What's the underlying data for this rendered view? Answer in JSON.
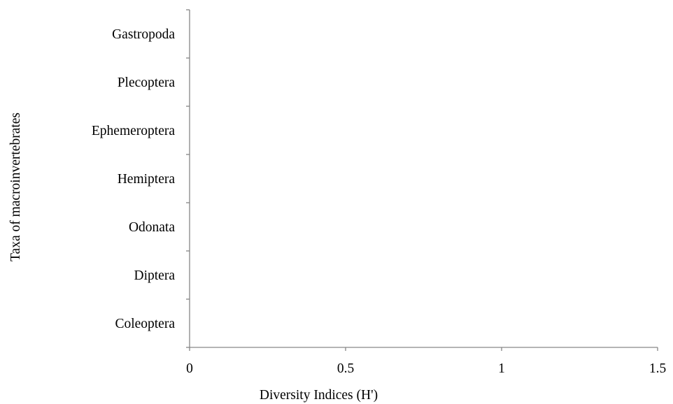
{
  "chart_data": {
    "type": "bar",
    "orientation": "horizontal",
    "categories": [
      "Coleoptera",
      "Diptera",
      "Odonata",
      "Hemiptera",
      "Ephemeroptera",
      "Plecoptera",
      "Gastropoda"
    ],
    "values": [
      0,
      0,
      0,
      0,
      0,
      0,
      0
    ],
    "xlabel": "Diversity Indices (H')",
    "ylabel": "Taxa of macroinvertebrates",
    "xlim": [
      0,
      1.5
    ],
    "xticks": [
      0,
      0.5,
      1,
      1.5
    ],
    "xtick_labels": [
      "0",
      "0.5",
      "1",
      "1.5"
    ],
    "grid": false,
    "legend": "none",
    "colors": {
      "axis": "#868686",
      "text": "#000000",
      "background": "#ffffff"
    }
  }
}
